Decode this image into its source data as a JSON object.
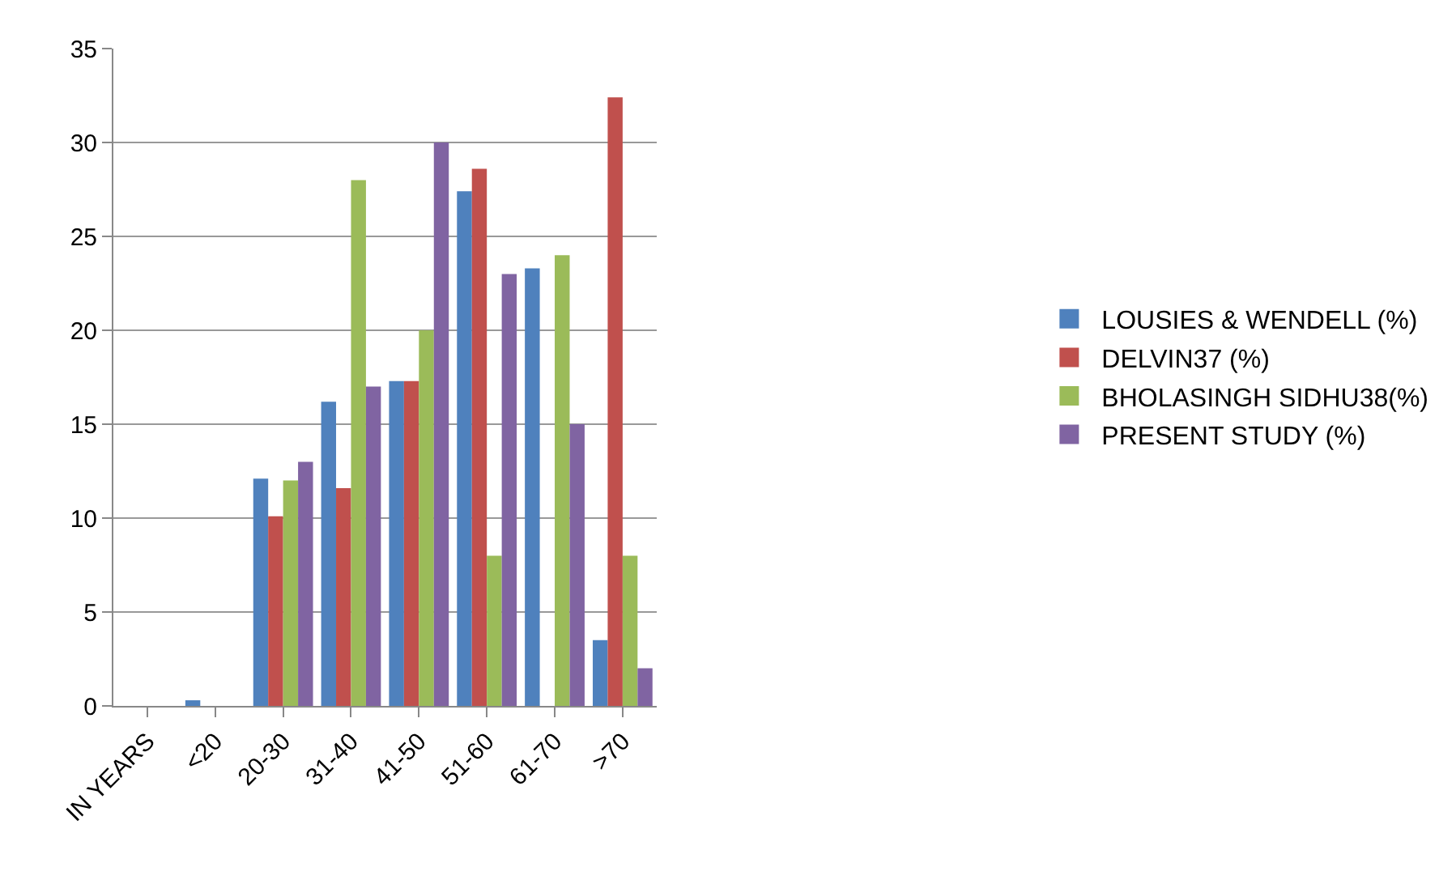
{
  "chart_data": {
    "type": "bar",
    "categories": [
      "IN YEARS",
      "<20",
      "20-30",
      "31-40",
      "41-50",
      "51-60",
      "61-70",
      ">70"
    ],
    "series": [
      {
        "name": "LOUSIES & WENDELL (%)",
        "color": "#4f81bd",
        "values": [
          null,
          0.3,
          12.1,
          16.2,
          17.3,
          27.4,
          23.3,
          3.5
        ]
      },
      {
        "name": "DELVIN37 (%)",
        "color": "#c0504d",
        "values": [
          null,
          null,
          10.1,
          11.6,
          17.3,
          28.6,
          null,
          32.4
        ]
      },
      {
        "name": "BHOLASINGH SIDHU38(%)",
        "color": "#9bbb59",
        "values": [
          null,
          null,
          12,
          28,
          20,
          8,
          24,
          8
        ]
      },
      {
        "name": "PRESENT STUDY (%)",
        "color": "#8064a2",
        "values": [
          null,
          null,
          13,
          17,
          30,
          23,
          15,
          2
        ]
      }
    ],
    "ylim": [
      0,
      35
    ],
    "yticks": [
      0,
      5,
      10,
      15,
      20,
      25,
      30,
      35
    ],
    "grid": "y",
    "legend": "right"
  }
}
